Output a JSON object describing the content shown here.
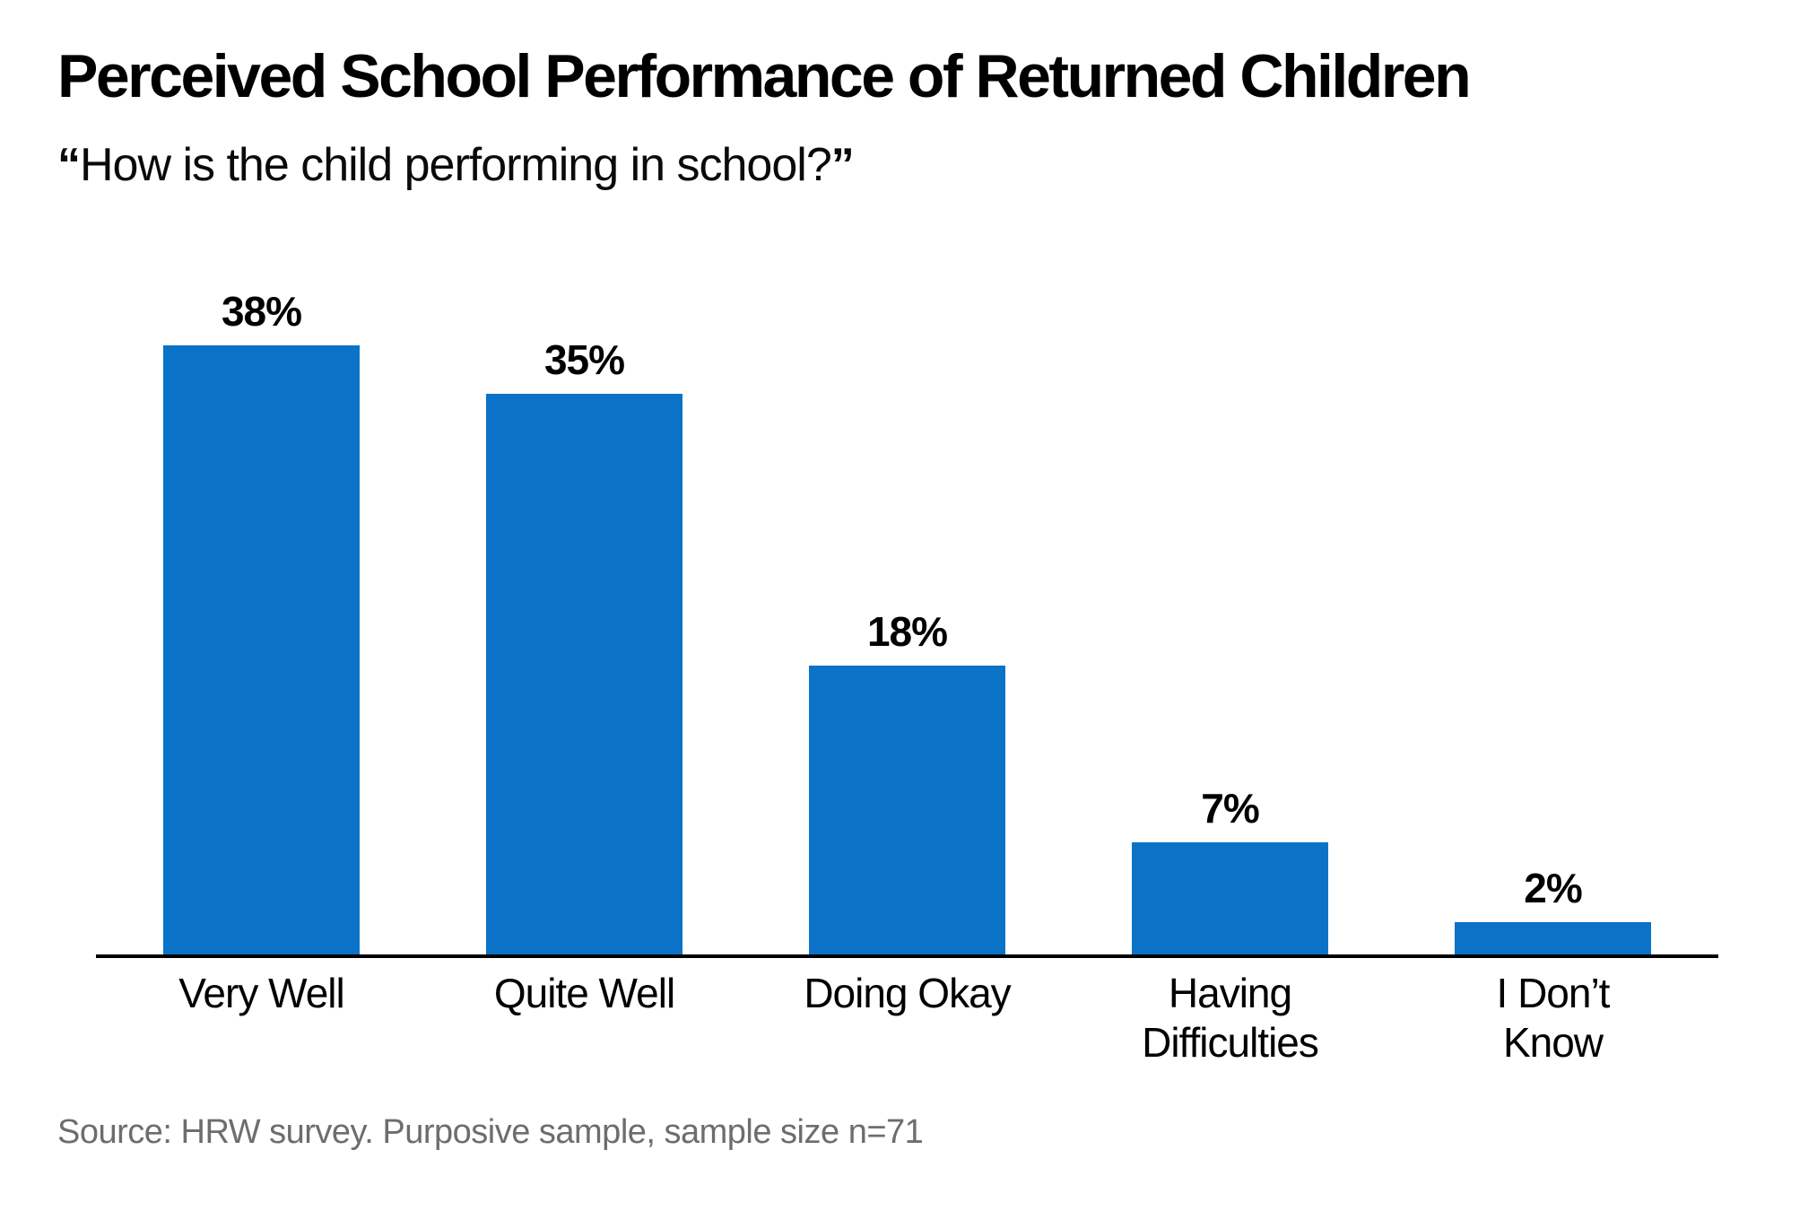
{
  "page": {
    "background": "#ffffff"
  },
  "header": {
    "title": "Perceived School Performance of Returned Children",
    "subtitle": {
      "open_quote": "“",
      "text": "How is the child performing in school?",
      "close_quote": "”"
    }
  },
  "chart_data": {
    "type": "bar",
    "title": "Perceived School Performance of Returned Children",
    "subtitle": "“How is the child performing in school?”",
    "categories": [
      "Very Well",
      "Quite Well",
      "Doing Okay",
      "Having Difficulties",
      "I Don’t Know"
    ],
    "category_lines": [
      [
        "Very Well"
      ],
      [
        "Quite Well"
      ],
      [
        "Doing Okay"
      ],
      [
        "Having",
        "Difficulties"
      ],
      [
        "I Don’t",
        "Know"
      ]
    ],
    "values": [
      38,
      35,
      18,
      7,
      2
    ],
    "value_labels": [
      "38%",
      "35%",
      "18%",
      "7%",
      "2%"
    ],
    "unit": "%",
    "xlabel": "",
    "ylabel": "",
    "ylim": [
      0,
      40
    ],
    "grid": false,
    "legend": "none",
    "bar_color": "#0b73c7",
    "axis_color": "#000000",
    "text_color": "#000000",
    "source_color": "#6d6d6d"
  },
  "footer": {
    "source": "Source: HRW survey. Purposive sample, sample size n=71"
  }
}
